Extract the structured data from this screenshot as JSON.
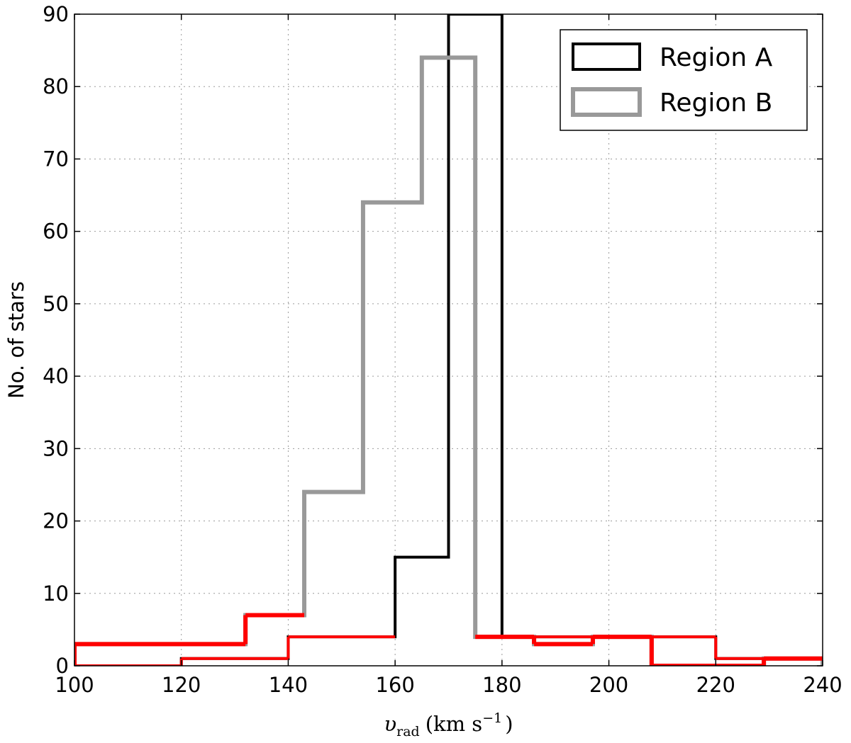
{
  "chart_data": {
    "type": "histogram",
    "title": "",
    "xlabel": "v_rad (km s^-1)",
    "xlabel_parts": {
      "symbol": "υ",
      "subscript": "rad",
      "units": "(km s",
      "exponent": "−1",
      "close": ")"
    },
    "ylabel": "No. of stars",
    "xlim": [
      100,
      240
    ],
    "ylim": [
      0,
      90
    ],
    "xticks": [
      100,
      120,
      140,
      160,
      180,
      200,
      220,
      240
    ],
    "yticks": [
      0,
      10,
      20,
      30,
      40,
      50,
      60,
      70,
      80,
      90
    ],
    "grid": true,
    "legend": {
      "position": "top-right"
    },
    "series": [
      {
        "name": "Region A",
        "color": "#000000",
        "bin_edges": [
          100,
          120,
          140,
          160,
          170,
          180,
          200,
          220,
          240
        ],
        "counts": [
          0,
          1,
          4,
          15,
          90,
          4,
          4,
          1
        ]
      },
      {
        "name": "Region B",
        "color": "#999999",
        "bin_edges": [
          100,
          132,
          143,
          154,
          165,
          175,
          186,
          197,
          208,
          218,
          229,
          240
        ],
        "counts": [
          3,
          7,
          24,
          64,
          84,
          4,
          3,
          4,
          0,
          0,
          1
        ]
      }
    ],
    "overlay_colors": {
      "Region A": "#ff0000",
      "Region B": "#ff0000"
    }
  }
}
